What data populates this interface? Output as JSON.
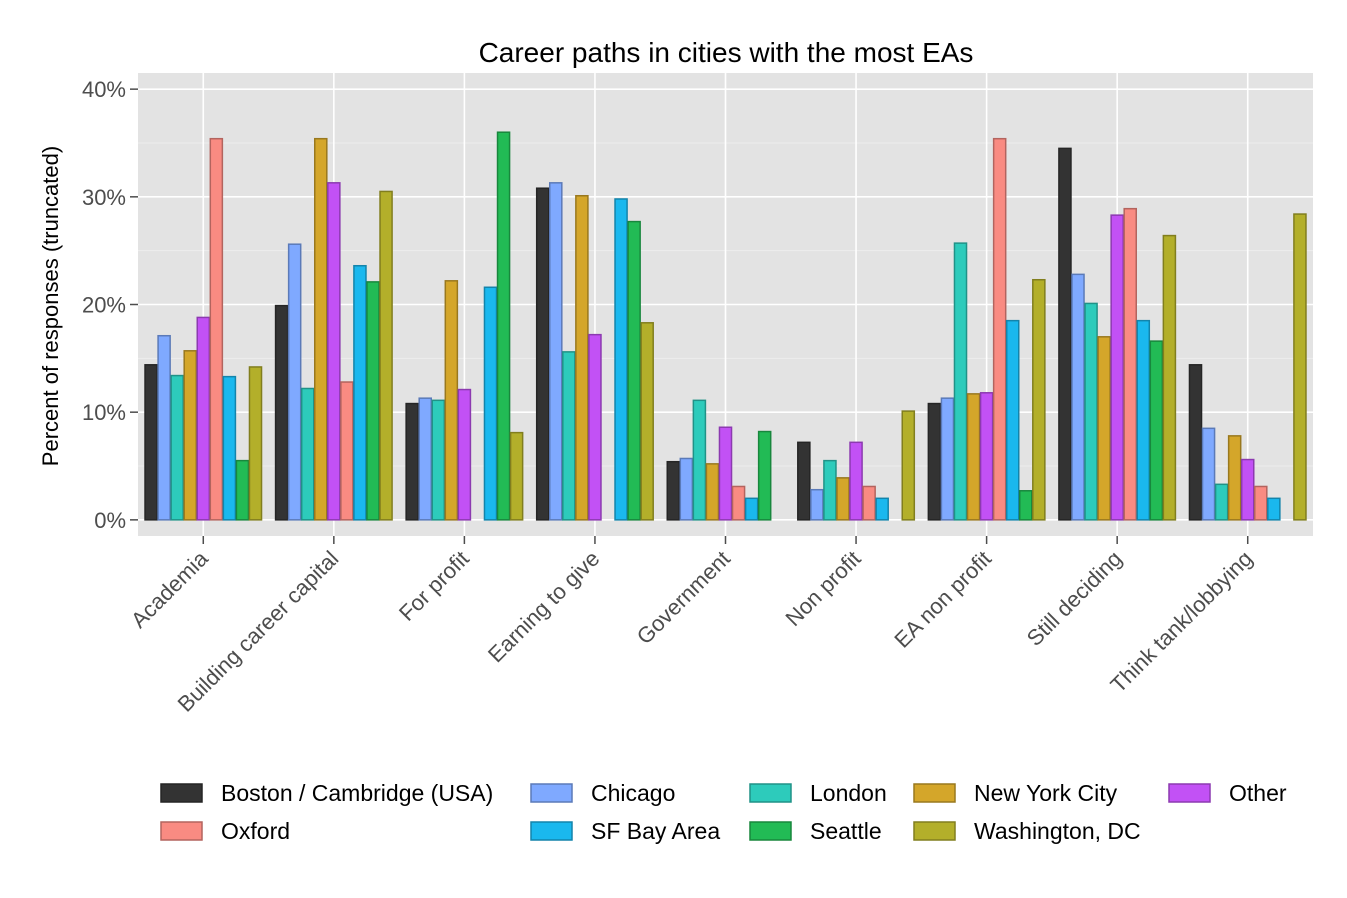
{
  "chart_data": {
    "type": "bar",
    "title": "Career paths in cities with the most EAs",
    "xlabel": "",
    "ylabel": "Percent of responses (truncated)",
    "ylim": [
      -1.5,
      41.5
    ],
    "yticks": [
      0,
      10,
      20,
      30,
      40
    ],
    "ytick_labels": [
      "0%",
      "10%",
      "20%",
      "30%",
      "40%"
    ],
    "grid": true,
    "legend_position": "bottom",
    "categories": [
      "Academia",
      "Building career capital",
      "For profit",
      "Earning to give",
      "Government",
      "Non profit",
      "EA non profit",
      "Still deciding",
      "Think tank/lobbying"
    ],
    "series": [
      {
        "name": "Boston / Cambridge (USA)",
        "color": "#333333",
        "values": [
          14.4,
          19.9,
          10.8,
          30.8,
          5.4,
          7.2,
          10.8,
          34.5,
          14.4
        ]
      },
      {
        "name": "Chicago",
        "color": "#7FA9FF",
        "values": [
          17.1,
          25.6,
          11.3,
          31.3,
          5.7,
          2.8,
          11.3,
          22.8,
          8.5
        ]
      },
      {
        "name": "London",
        "color": "#2DCBBB",
        "values": [
          13.4,
          12.2,
          11.1,
          15.6,
          11.1,
          5.5,
          25.7,
          20.1,
          3.3
        ]
      },
      {
        "name": "New York City",
        "color": "#D4A62A",
        "values": [
          15.7,
          35.4,
          22.2,
          30.1,
          5.2,
          3.9,
          11.7,
          17.0,
          7.8
        ]
      },
      {
        "name": "Other",
        "color": "#C251F5",
        "values": [
          18.8,
          31.3,
          12.1,
          17.2,
          8.6,
          7.2,
          11.8,
          28.3,
          5.6
        ]
      },
      {
        "name": "Oxford",
        "color": "#F98B82",
        "values": [
          35.4,
          12.8,
          0,
          0,
          3.1,
          3.1,
          35.4,
          28.9,
          3.1
        ]
      },
      {
        "name": "SF Bay Area",
        "color": "#1AB8EE",
        "values": [
          13.3,
          23.6,
          21.6,
          29.8,
          2.0,
          2.0,
          18.5,
          18.5,
          2.0
        ]
      },
      {
        "name": "Seattle",
        "color": "#22BB55",
        "values": [
          5.5,
          22.1,
          36.0,
          27.7,
          8.2,
          0,
          2.7,
          16.6,
          0
        ]
      },
      {
        "name": "Washington, DC",
        "color": "#B3AF2A",
        "values": [
          14.2,
          30.5,
          8.1,
          18.3,
          0,
          10.1,
          22.3,
          26.4,
          28.4
        ]
      }
    ],
    "legend_rows": [
      [
        "Boston / Cambridge (USA)",
        "Chicago",
        "London",
        "New York City",
        "Other"
      ],
      [
        "Oxford",
        "SF Bay Area",
        "Seattle",
        "Washington, DC"
      ]
    ]
  }
}
